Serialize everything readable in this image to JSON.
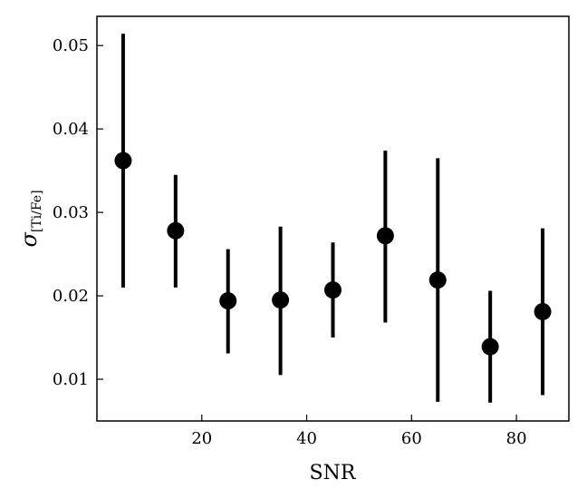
{
  "chart_data": {
    "type": "scatter",
    "title": "",
    "xlabel": "SNR",
    "ylabel": "σ",
    "ylabel_subscript": "[Ti/Fe]",
    "xlim": [
      0,
      90
    ],
    "ylim": [
      0.005,
      0.0535
    ],
    "xticks": [
      20,
      40,
      60,
      80
    ],
    "xtick_labels": [
      "20",
      "40",
      "60",
      "80"
    ],
    "yticks": [
      0.01,
      0.02,
      0.03,
      0.04,
      0.05
    ],
    "ytick_labels": [
      "0.01",
      "0.02",
      "0.03",
      "0.04",
      "0.05"
    ],
    "grid": false,
    "legend": "none",
    "marker_color": "#000000",
    "series": [
      {
        "x": [
          5,
          15,
          25,
          35,
          45,
          55,
          65,
          75,
          85
        ],
        "y": [
          0.0362,
          0.0278,
          0.0194,
          0.0195,
          0.0207,
          0.0272,
          0.0219,
          0.0139,
          0.0181
        ],
        "y_low": [
          0.021,
          0.021,
          0.0131,
          0.0105,
          0.015,
          0.0168,
          0.0073,
          0.0072,
          0.0081
        ],
        "y_high": [
          0.0514,
          0.0345,
          0.0256,
          0.0283,
          0.0264,
          0.0374,
          0.0365,
          0.0206,
          0.0281
        ]
      }
    ]
  }
}
